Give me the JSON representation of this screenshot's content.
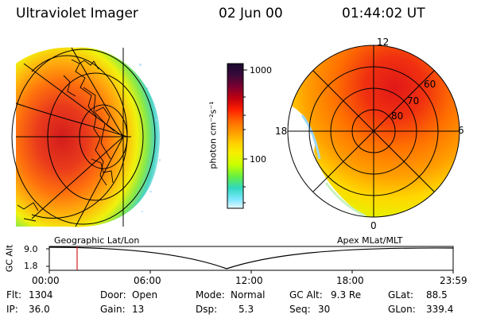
{
  "header": {
    "title": "Ultraviolet Imager",
    "date": "02 Jun 00",
    "time": "01:44:02 UT"
  },
  "left_panel": {
    "caption": "Geographic Lat/Lon"
  },
  "right_panel": {
    "caption": "Apex MLat/MLT",
    "mlt_labels": {
      "top": "12",
      "left": "18",
      "right": "6",
      "bottom": "0"
    },
    "lat_labels": [
      "80",
      "70",
      "60"
    ]
  },
  "colorbar": {
    "unit_label": "photon cm⁻²s⁻¹",
    "tick_labels": [
      "1000",
      "100"
    ],
    "colors": [
      "#1a0a2e",
      "#3a0a3a",
      "#7a0030",
      "#c00010",
      "#ff2000",
      "#ff6a00",
      "#ffa000",
      "#ffd000",
      "#f6f000",
      "#c8ff00",
      "#66f040",
      "#30d8c0",
      "#80e8ff",
      "#e8f8ff"
    ]
  },
  "altitude_plot": {
    "ylabel": "GC Alt",
    "yticks": [
      "9.0",
      "1.8"
    ],
    "xticks": [
      "00:00",
      "06:00",
      "12:00",
      "18:00",
      "23:59"
    ]
  },
  "status": {
    "flt_label": "Flt:",
    "flt_value": "1304",
    "ip_label": "IP:",
    "ip_value": "36.0",
    "door_label": "Door:",
    "door_value": "Open",
    "gain_label": "Gain:",
    "gain_value": "13",
    "mode_label": "Mode:",
    "mode_value": "Normal",
    "dsp_label": "Dsp:",
    "dsp_value": "5.3",
    "gcalt_label": "GC Alt:",
    "gcalt_value": "9.3 Re",
    "seq_label": "Seq:",
    "seq_value": "30",
    "glat_label": "GLat:",
    "glat_value": "88.5",
    "glon_label": "GLon:",
    "glon_value": "339.4"
  }
}
